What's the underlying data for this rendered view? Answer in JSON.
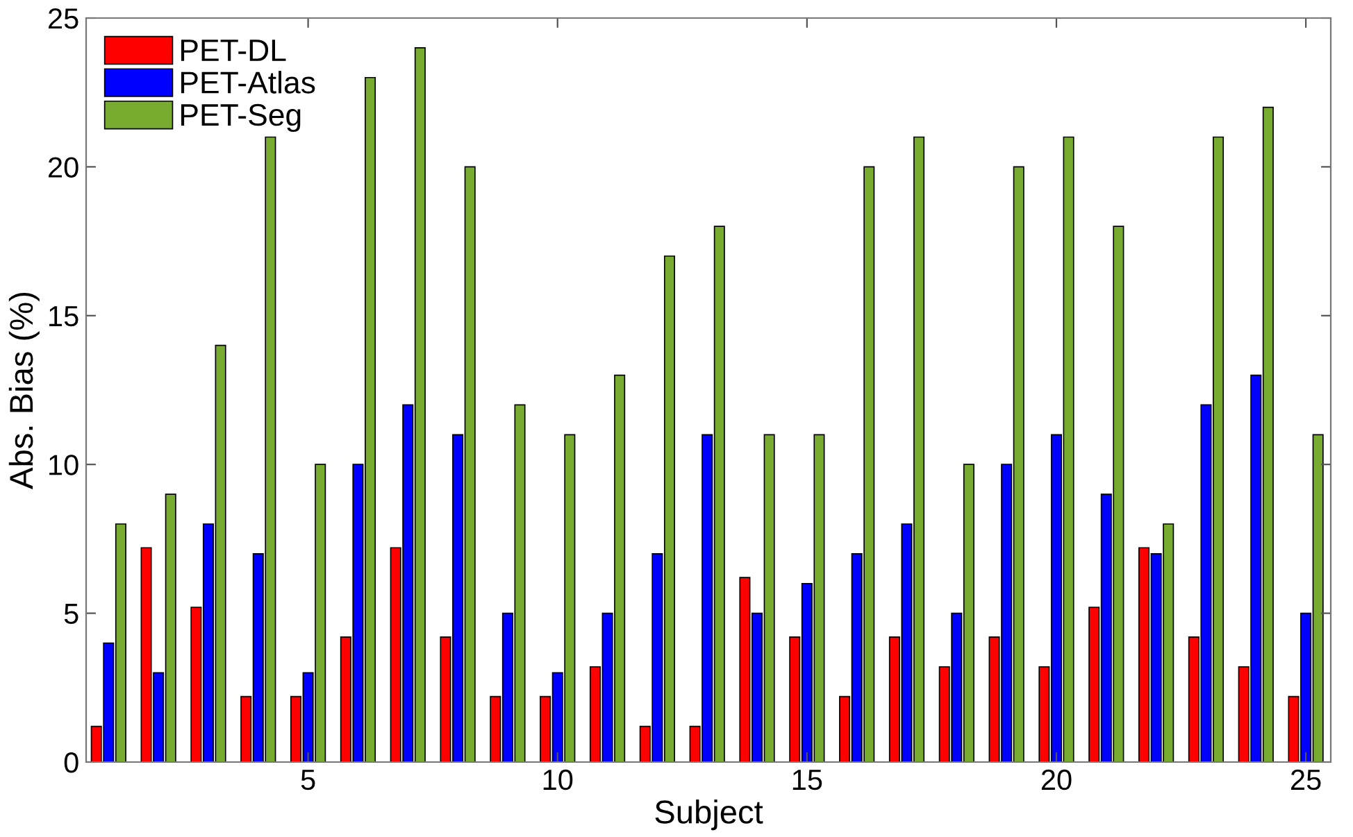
{
  "chart_data": {
    "type": "bar",
    "xlabel": "Subject",
    "ylabel": "Abs. Bias (%)",
    "x": [
      1,
      2,
      3,
      4,
      5,
      6,
      7,
      8,
      9,
      10,
      11,
      12,
      13,
      14,
      15,
      16,
      17,
      18,
      19,
      20,
      21,
      22,
      23,
      24,
      25
    ],
    "series": [
      {
        "name": "PET-DL",
        "color": "#ff0000",
        "values": [
          1.2,
          7.2,
          5.2,
          2.2,
          2.2,
          4.2,
          7.2,
          4.2,
          2.2,
          2.2,
          3.2,
          1.2,
          1.2,
          6.2,
          4.2,
          2.2,
          4.2,
          3.2,
          4.2,
          3.2,
          5.2,
          7.2,
          4.2,
          3.2,
          2.2
        ]
      },
      {
        "name": "PET-Atlas",
        "color": "#0000ff",
        "values": [
          4,
          3,
          8,
          7,
          3,
          10,
          12,
          11,
          5,
          3,
          5,
          7,
          11,
          5,
          6,
          7,
          8,
          5,
          10,
          11,
          9,
          7,
          12,
          13,
          5
        ]
      },
      {
        "name": "PET-Seg",
        "color": "#77ac30",
        "values": [
          8,
          9,
          14,
          21,
          10,
          23,
          24,
          20,
          12,
          11,
          13,
          17,
          18,
          11,
          11,
          20,
          21,
          10,
          20,
          21,
          18,
          8,
          21,
          22,
          11
        ]
      }
    ],
    "xlim": [
      0.55,
      25.5
    ],
    "xticks": [
      5,
      10,
      15,
      20,
      25
    ],
    "ylim": [
      0,
      25
    ],
    "yticks": [
      0,
      5,
      10,
      15,
      20,
      25
    ],
    "grid": false,
    "legend": "top left"
  }
}
